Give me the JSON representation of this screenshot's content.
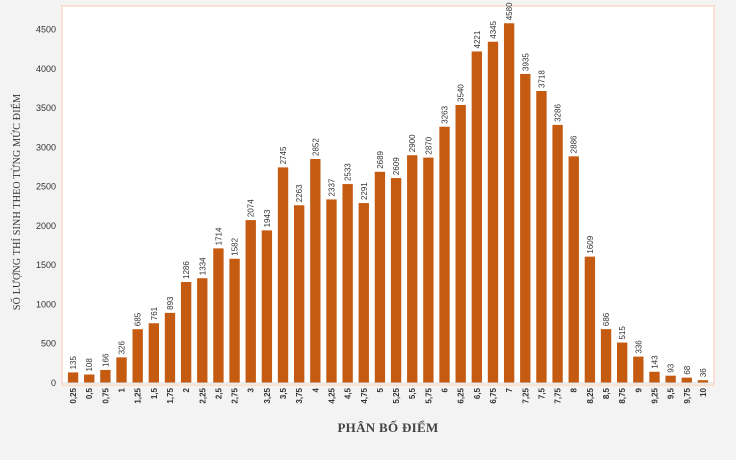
{
  "chart_data": {
    "type": "bar",
    "title": "",
    "xlabel": "PHÂN BỐ ĐIỂM",
    "ylabel": "SỐ LƯỢNG THÍ SINH THEO TỪNG MỨC ĐIỂM",
    "ylim": [
      0,
      4800
    ],
    "yticks": [
      0,
      500,
      1000,
      1500,
      2000,
      2500,
      3000,
      3500,
      4000,
      4500
    ],
    "grid": false,
    "legend": "none",
    "bar_color": "#c55a11",
    "categories": [
      "0,25",
      "0,5",
      "0,75",
      "1",
      "1,25",
      "1,5",
      "1,75",
      "2",
      "2,25",
      "2,5",
      "2,75",
      "3",
      "3,25",
      "3,5",
      "3,75",
      "4",
      "4,25",
      "4,5",
      "4,75",
      "5",
      "5,25",
      "5,5",
      "5,75",
      "6",
      "6,25",
      "6,5",
      "6,75",
      "7",
      "7,25",
      "7,5",
      "7,75",
      "8",
      "8,25",
      "8,5",
      "8,75",
      "9",
      "9,25",
      "9,5",
      "9,75",
      "10"
    ],
    "values": [
      135,
      108,
      166,
      326,
      685,
      761,
      893,
      1286,
      1334,
      1714,
      1582,
      2074,
      1943,
      2745,
      2263,
      2852,
      2337,
      2533,
      2291,
      2689,
      2609,
      2900,
      2870,
      3263,
      3540,
      4221,
      4345,
      4580,
      3935,
      3718,
      3286,
      2886,
      1609,
      686,
      515,
      336,
      143,
      93,
      68,
      36
    ]
  }
}
